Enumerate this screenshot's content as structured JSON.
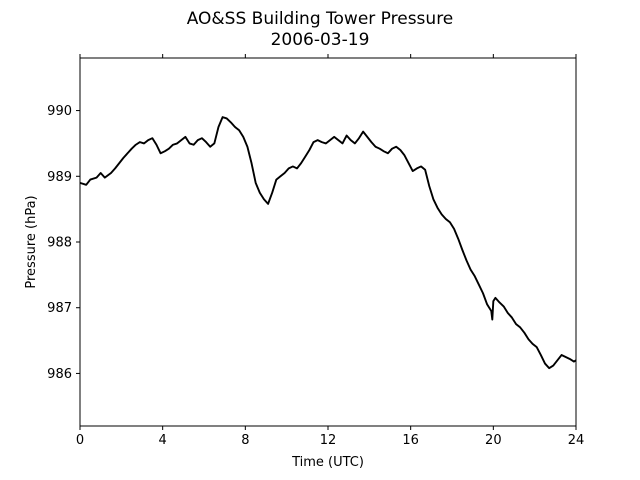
{
  "chart_data": {
    "type": "line",
    "title": "AO&SS Building Tower Pressure",
    "subtitle": "2006-03-19",
    "xlabel": "Time (UTC)",
    "ylabel": "Pressure (hPa)",
    "xlim": [
      0,
      24
    ],
    "ylim": [
      985.2,
      990.8
    ],
    "xticks": [
      0,
      4,
      8,
      12,
      16,
      20,
      24
    ],
    "yticks": [
      986,
      987,
      988,
      989,
      990
    ],
    "grid": false,
    "line_color": "#000000",
    "series": [
      {
        "x": [
          0,
          0.3,
          0.5,
          0.8,
          1.0,
          1.2,
          1.5,
          1.7,
          1.9,
          2.1,
          2.3,
          2.5,
          2.7,
          2.9,
          3.1,
          3.3,
          3.5,
          3.7,
          3.9,
          4.1,
          4.3,
          4.5,
          4.7,
          4.9,
          5.1,
          5.3,
          5.5,
          5.7,
          5.9,
          6.1,
          6.3,
          6.5,
          6.7,
          6.9,
          7.1,
          7.3,
          7.5,
          7.7,
          7.9,
          8.1,
          8.3,
          8.5,
          8.7,
          8.9,
          9.1,
          9.3,
          9.5,
          9.7,
          9.9,
          10.1,
          10.3,
          10.5,
          10.7,
          10.9,
          11.1,
          11.3,
          11.5,
          11.7,
          11.9,
          12.1,
          12.3,
          12.5,
          12.7,
          12.9,
          13.1,
          13.3,
          13.5,
          13.7,
          13.9,
          14.1,
          14.3,
          14.5,
          14.7,
          14.9,
          15.1,
          15.3,
          15.5,
          15.7,
          15.9,
          16.1,
          16.3,
          16.5,
          16.7,
          16.9,
          17.1,
          17.3,
          17.5,
          17.7,
          17.9,
          18.1,
          18.3,
          18.5,
          18.7,
          18.9,
          19.1,
          19.3,
          19.5,
          19.7,
          19.9,
          19.95,
          20.0,
          20.1,
          20.3,
          20.5,
          20.7,
          20.9,
          21.1,
          21.3,
          21.5,
          21.7,
          21.9,
          22.1,
          22.3,
          22.5,
          22.7,
          22.9,
          23.1,
          23.3,
          23.5,
          23.7,
          23.9,
          24.0
        ],
        "y": [
          988.9,
          988.87,
          988.95,
          988.98,
          989.05,
          988.98,
          989.05,
          989.12,
          989.2,
          989.28,
          989.35,
          989.42,
          989.48,
          989.52,
          989.5,
          989.55,
          989.58,
          989.48,
          989.35,
          989.38,
          989.42,
          989.48,
          989.5,
          989.55,
          989.6,
          989.5,
          989.48,
          989.55,
          989.58,
          989.52,
          989.45,
          989.5,
          989.75,
          989.9,
          989.88,
          989.82,
          989.75,
          989.7,
          989.6,
          989.45,
          989.2,
          988.9,
          988.75,
          988.65,
          988.58,
          988.75,
          988.95,
          989.0,
          989.05,
          989.12,
          989.15,
          989.12,
          989.2,
          989.3,
          989.4,
          989.52,
          989.55,
          989.52,
          989.5,
          989.55,
          989.6,
          989.55,
          989.5,
          989.62,
          989.55,
          989.5,
          989.58,
          989.68,
          989.6,
          989.52,
          989.45,
          989.42,
          989.38,
          989.35,
          989.42,
          989.45,
          989.4,
          989.32,
          989.2,
          989.08,
          989.12,
          989.15,
          989.1,
          988.85,
          988.65,
          988.52,
          988.42,
          988.35,
          988.3,
          988.2,
          988.05,
          987.88,
          987.72,
          987.58,
          987.48,
          987.35,
          987.22,
          987.05,
          986.95,
          986.82,
          987.1,
          987.15,
          987.08,
          987.02,
          986.92,
          986.85,
          986.75,
          986.7,
          986.62,
          986.52,
          986.45,
          986.4,
          986.28,
          986.15,
          986.08,
          986.12,
          986.2,
          986.28,
          986.25,
          986.22,
          986.18,
          986.2
        ]
      }
    ]
  }
}
